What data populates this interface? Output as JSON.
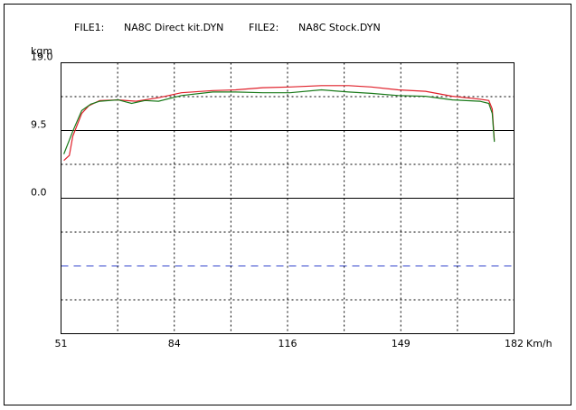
{
  "chart_data": {
    "type": "line",
    "y_label": "kgm",
    "x_label": "Km/h",
    "series": [
      {
        "label": "FILE1:",
        "name": "NA8C Direct kit.DYN",
        "color": "#e0202a",
        "x": [
          51.8,
          53.4,
          54.4,
          57.0,
          59.1,
          62.2,
          67.5,
          72.7,
          79.2,
          85.8,
          94.9,
          101.5,
          109.3,
          117.2,
          126.3,
          134.2,
          140.7,
          148.5,
          156.4,
          164.2,
          172.1,
          174.7,
          175.7,
          176.3
        ],
        "values": [
          5.3,
          6.0,
          8.7,
          11.9,
          13.0,
          13.7,
          13.8,
          13.6,
          14.1,
          14.8,
          15.1,
          15.2,
          15.5,
          15.6,
          15.8,
          15.8,
          15.6,
          15.2,
          15.0,
          14.3,
          13.9,
          13.7,
          12.5,
          8.1
        ]
      },
      {
        "label": "FILE2:",
        "name": "NA8C Stock.DYN",
        "color": "#1a7a1a",
        "x": [
          51.8,
          54.4,
          57.0,
          59.6,
          62.2,
          67.5,
          71.4,
          75.3,
          79.2,
          85.8,
          94.9,
          101.5,
          109.3,
          117.2,
          126.3,
          134.2,
          140.7,
          148.5,
          156.4,
          164.2,
          172.1,
          174.7,
          175.7,
          176.3
        ],
        "values": [
          6.2,
          9.4,
          12.3,
          13.2,
          13.6,
          13.8,
          13.3,
          13.7,
          13.6,
          14.4,
          14.9,
          14.9,
          14.8,
          14.8,
          15.2,
          14.9,
          14.7,
          14.4,
          14.3,
          13.8,
          13.6,
          13.3,
          11.9,
          7.9
        ]
      }
    ],
    "xlim": [
      51,
      182
    ],
    "xticks": [
      51,
      {
        "value": 83.75,
        "label": "84"
      },
      {
        "value": 116.5,
        "label": "116"
      },
      {
        "value": 149.25,
        "label": "149"
      },
      182
    ],
    "ylim": [
      -19,
      19
    ],
    "yticks": [
      {
        "value": 19,
        "label": "19.0"
      },
      9.5,
      {
        "value": 0,
        "label": "0.0"
      }
    ],
    "reference_line": {
      "value": -9.5,
      "color": "#3344cc"
    },
    "grid": true
  }
}
